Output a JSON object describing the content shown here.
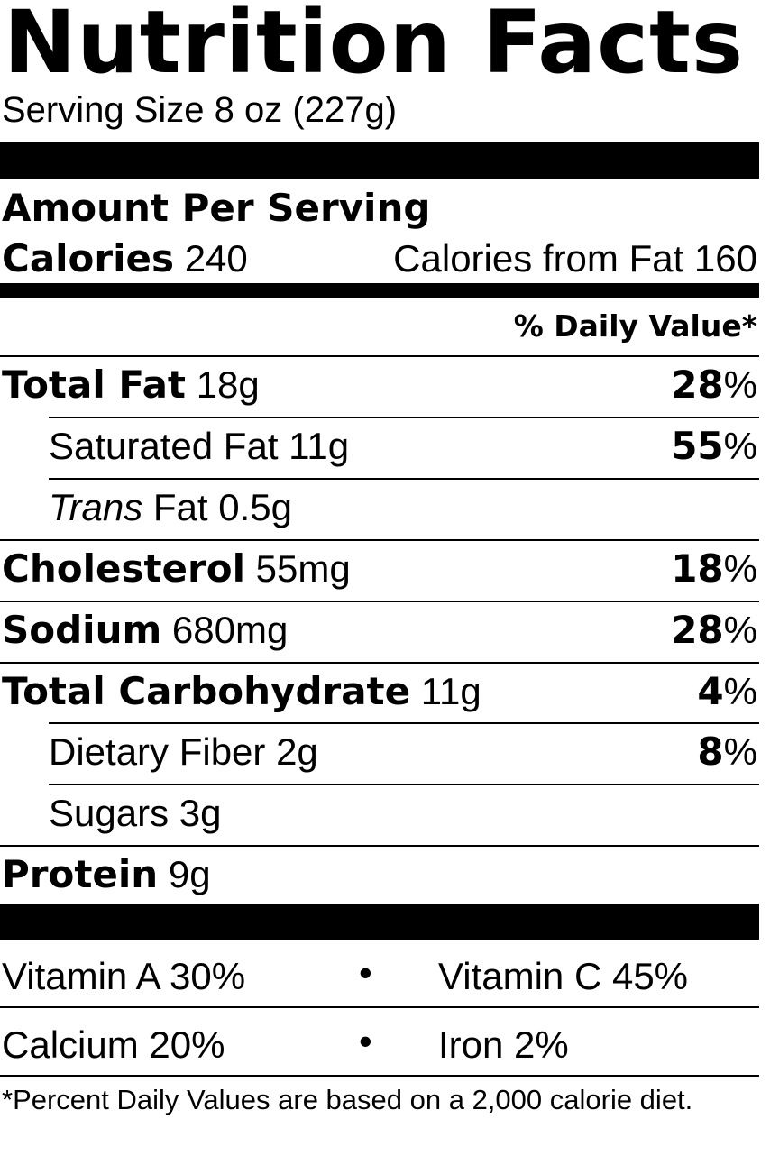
{
  "header": {
    "title": "Nutrition Facts",
    "serving_size": "Serving Size 8 oz (227g)"
  },
  "amount_per_serving": "Amount Per Serving",
  "calories": {
    "label": "Calories",
    "value": "240",
    "from_fat": "Calories from Fat 160"
  },
  "daily_value_header": "% Daily Value*",
  "nutrients": [
    {
      "label": "Total Fat",
      "amount": "18g",
      "pct_num": "28",
      "pct_sign": "%"
    },
    {
      "label": "Saturated Fat",
      "amount": "11g",
      "pct_num": "55",
      "pct_sign": "%"
    },
    {
      "label_italic": "Trans",
      "label": "Fat",
      "amount": "0.5g"
    },
    {
      "label": "Cholesterol",
      "amount": "55mg",
      "pct_num": "18",
      "pct_sign": "%"
    },
    {
      "label": "Sodium",
      "amount": "680mg",
      "pct_num": "28",
      "pct_sign": "%"
    },
    {
      "label": "Total Carbohydrate",
      "amount": "11g",
      "pct_num": "4",
      "pct_sign": "%"
    },
    {
      "label": "Dietary Fiber",
      "amount": "2g",
      "pct_num": "8",
      "pct_sign": "%"
    },
    {
      "label": "Sugars",
      "amount": "3g"
    },
    {
      "label": "Protein",
      "amount": "9g"
    }
  ],
  "vitamins": {
    "row1_left": "Vitamin A 30%",
    "row1_right": "Vitamin C 45%",
    "row2_left": "Calcium 20%",
    "row2_right": "Iron 2%",
    "bullet": "•"
  },
  "footnote": "*Percent Daily Values are based on a 2,000 calorie diet."
}
